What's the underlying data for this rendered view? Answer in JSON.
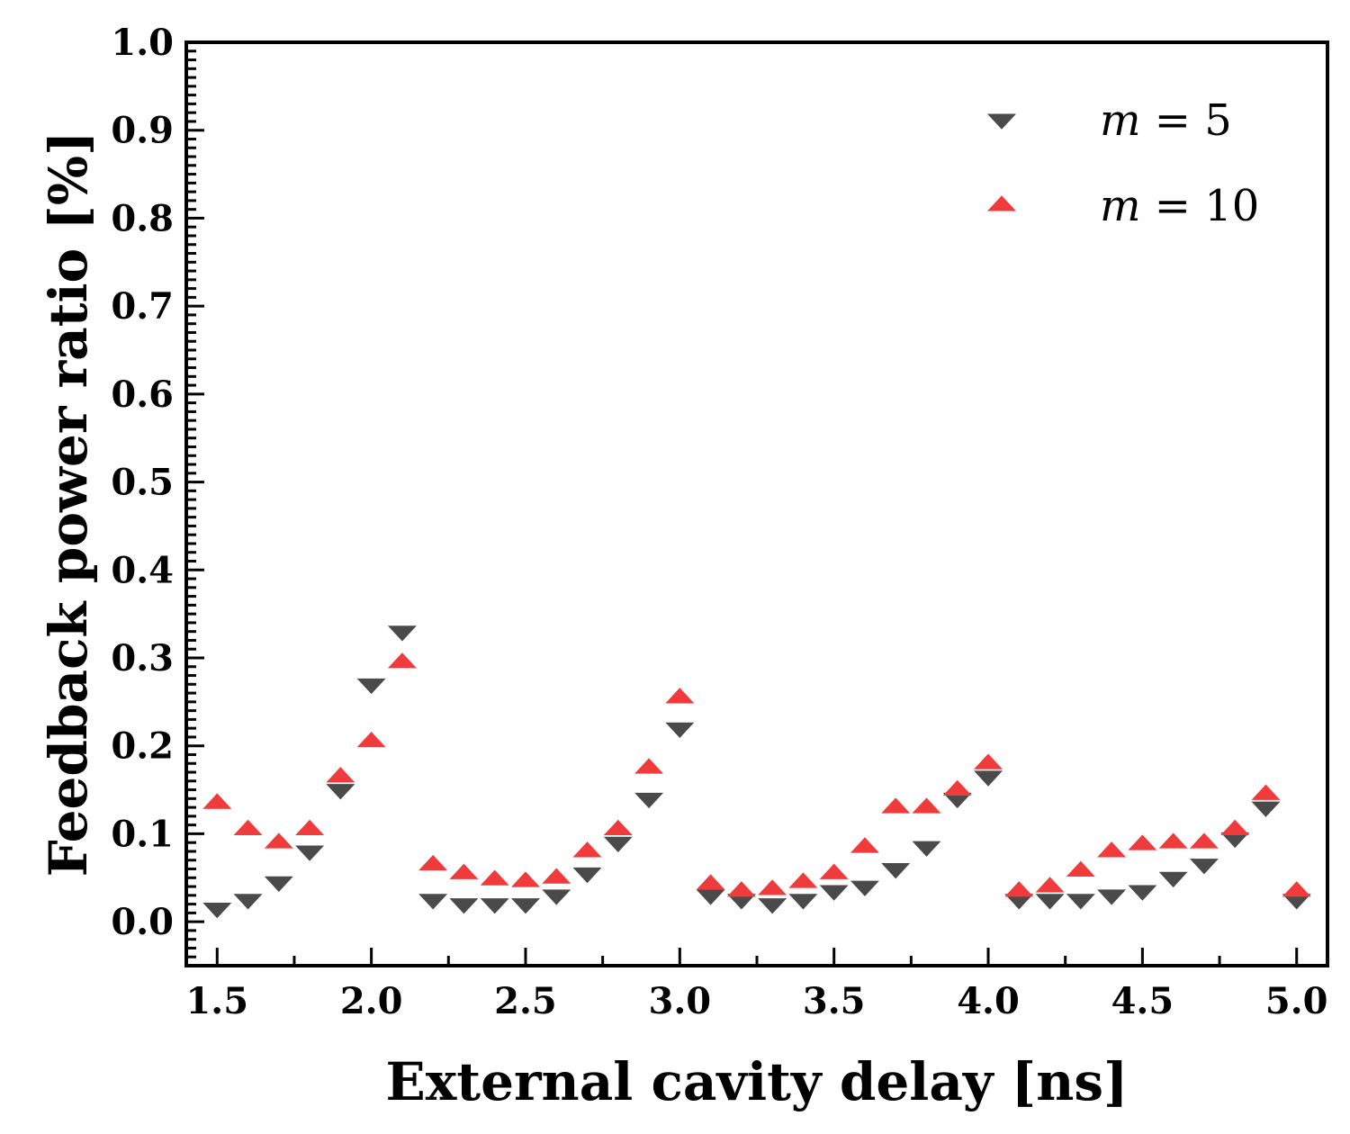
{
  "chart_data": {
    "type": "scatter",
    "title": "",
    "xlabel": "External cavity delay [ns]",
    "ylabel": "Feedback power ratio [%]",
    "xlim": [
      1.4,
      5.1
    ],
    "ylim": [
      -0.05,
      1.0
    ],
    "xticks": [
      1.5,
      2.0,
      2.5,
      3.0,
      3.5,
      4.0,
      4.5,
      5.0
    ],
    "xtick_labels": [
      "1.5",
      "2.0",
      "2.5",
      "3.0",
      "3.5",
      "4.0",
      "4.5",
      "5.0"
    ],
    "yticks": [
      0.0,
      0.1,
      0.2,
      0.3,
      0.4,
      0.5,
      0.6,
      0.7,
      0.8,
      0.9,
      1.0
    ],
    "ytick_labels": [
      "0.0",
      "0.1",
      "0.2",
      "0.3",
      "0.4",
      "0.5",
      "0.6",
      "0.7",
      "0.8",
      "0.9",
      "1.0"
    ],
    "grid": false,
    "legend_position": "top-right",
    "x": [
      1.5,
      1.6,
      1.7,
      1.8,
      1.9,
      2.0,
      2.1,
      2.2,
      2.3,
      2.4,
      2.5,
      2.6,
      2.7,
      2.8,
      2.9,
      3.0,
      3.1,
      3.2,
      3.3,
      3.4,
      3.5,
      3.6,
      3.7,
      3.8,
      3.9,
      4.0,
      4.1,
      4.2,
      4.3,
      4.4,
      4.5,
      4.6,
      4.7,
      4.8,
      4.9,
      5.0
    ],
    "series": [
      {
        "name": "m = 5",
        "legend_var": "m",
        "legend_rest": " = 5",
        "marker": "triangle-down",
        "color": "#4a4a4a",
        "values": [
          0.015,
          0.025,
          0.045,
          0.08,
          0.15,
          0.27,
          0.33,
          0.025,
          0.02,
          0.02,
          0.02,
          0.03,
          0.055,
          0.09,
          0.14,
          0.22,
          0.03,
          0.025,
          0.02,
          0.025,
          0.035,
          0.04,
          0.06,
          0.085,
          0.14,
          0.165,
          0.025,
          0.025,
          0.025,
          0.03,
          0.035,
          0.05,
          0.065,
          0.095,
          0.13,
          0.025
        ]
      },
      {
        "name": "m = 10",
        "legend_var": "m",
        "legend_rest": " = 10",
        "marker": "triangle-up",
        "color": "#ef3b3b",
        "values": [
          0.135,
          0.105,
          0.09,
          0.105,
          0.165,
          0.205,
          0.295,
          0.065,
          0.055,
          0.048,
          0.046,
          0.05,
          0.08,
          0.105,
          0.175,
          0.255,
          0.043,
          0.035,
          0.037,
          0.045,
          0.055,
          0.085,
          0.13,
          0.13,
          0.15,
          0.18,
          0.035,
          0.04,
          0.058,
          0.08,
          0.088,
          0.09,
          0.09,
          0.105,
          0.145,
          0.035
        ]
      }
    ]
  }
}
